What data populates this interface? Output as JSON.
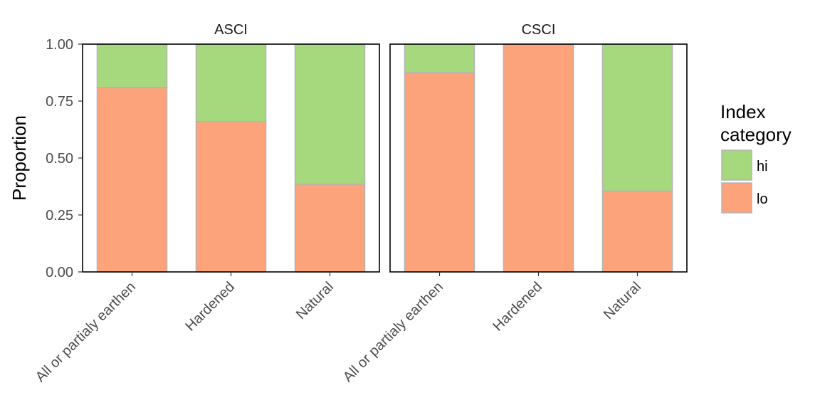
{
  "chart_data": {
    "type": "bar",
    "stacked": true,
    "ylabel": "Proportion",
    "ylim": [
      0,
      1
    ],
    "y_ticks": [
      "0.00",
      "0.25",
      "0.50",
      "0.75",
      "1.00"
    ],
    "categories": [
      "All or partialy earthen",
      "Hardened",
      "Natural"
    ],
    "legend": {
      "title_lines": [
        "Index",
        "category"
      ],
      "placement": "right",
      "items": [
        {
          "key": "hi",
          "label": "hi"
        },
        {
          "key": "lo",
          "label": "lo"
        }
      ]
    },
    "colors": {
      "hi": "#a6d97e",
      "lo": "#fca37b",
      "bar_outline": "#b3b3b3"
    },
    "grid": false,
    "panels": [
      {
        "title": "ASCI",
        "series": [
          {
            "name": "lo",
            "values": [
              0.81,
              0.66,
              0.385
            ]
          },
          {
            "name": "hi",
            "values": [
              0.19,
              0.34,
              0.615
            ]
          }
        ]
      },
      {
        "title": "CSCI",
        "series": [
          {
            "name": "lo",
            "values": [
              0.875,
              1.0,
              0.355
            ]
          },
          {
            "name": "hi",
            "values": [
              0.125,
              0.0,
              0.645
            ]
          }
        ]
      }
    ]
  }
}
